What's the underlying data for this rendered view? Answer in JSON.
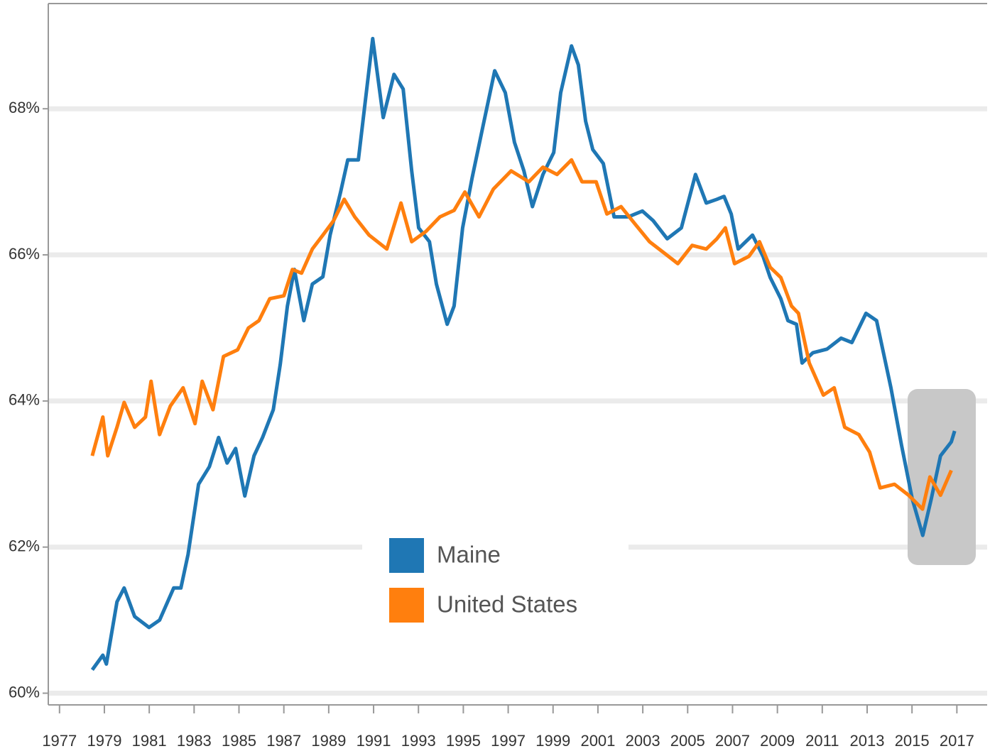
{
  "chart_data": {
    "type": "line",
    "ylim": [
      59.84,
      69.44
    ],
    "yticks": [
      {
        "value": 60,
        "label": "60%"
      },
      {
        "value": 62,
        "label": "62%"
      },
      {
        "value": 64,
        "label": "64%"
      },
      {
        "value": 66,
        "label": "66%"
      },
      {
        "value": 68,
        "label": "68%"
      }
    ],
    "xlim": [
      1976.5,
      2018.35
    ],
    "xticks": [
      1977,
      1979,
      1981,
      1983,
      1985,
      1987,
      1989,
      1991,
      1993,
      1995,
      1997,
      1999,
      2001,
      2003,
      2005,
      2007,
      2009,
      2011,
      2013,
      2015,
      2017
    ],
    "grid": true,
    "series": [
      {
        "name": "Maine",
        "color": "#1f77b4",
        "x": [
          1978.46,
          1978.93,
          1979.09,
          1979.56,
          1979.88,
          1980.35,
          1980.99,
          1981.46,
          1982.09,
          1982.41,
          1982.73,
          1983.2,
          1983.68,
          1984.09,
          1984.47,
          1984.85,
          1985.26,
          1985.67,
          1986.05,
          1986.53,
          1986.84,
          1987.16,
          1987.47,
          1987.89,
          1988.27,
          1988.74,
          1989.06,
          1989.53,
          1989.85,
          1990.32,
          1990.64,
          1990.96,
          1991.43,
          1991.91,
          1992.32,
          1992.7,
          1993.01,
          1993.49,
          1993.8,
          1994.28,
          1994.59,
          1994.97,
          1995.39,
          1995.86,
          1996.4,
          1996.87,
          1997.28,
          1997.7,
          1998.08,
          1998.55,
          1999.03,
          1999.34,
          1999.82,
          2000.13,
          2000.45,
          2000.77,
          2001.24,
          2001.72,
          2002.35,
          2002.98,
          2003.46,
          2004.09,
          2004.72,
          2005.35,
          2005.83,
          2006.3,
          2006.62,
          2006.94,
          2007.25,
          2007.89,
          2008.36,
          2008.68,
          2009.15,
          2009.47,
          2009.85,
          2010.1,
          2010.58,
          2011.21,
          2011.84,
          2012.32,
          2012.95,
          2013.42,
          2014.06,
          2014.53,
          2015.01,
          2015.48,
          2015.86,
          2016.27,
          2016.75,
          2016.9
        ],
        "values": [
          60.32,
          60.52,
          60.4,
          61.25,
          61.44,
          61.05,
          60.9,
          61.0,
          61.44,
          61.44,
          61.9,
          62.86,
          63.1,
          63.5,
          63.15,
          63.35,
          62.7,
          63.25,
          63.5,
          63.88,
          64.5,
          65.3,
          65.8,
          65.1,
          65.6,
          65.7,
          66.27,
          66.86,
          67.3,
          67.3,
          68.13,
          68.96,
          67.88,
          68.47,
          68.27,
          67.15,
          66.37,
          66.18,
          65.6,
          65.05,
          65.3,
          66.37,
          67.05,
          67.74,
          68.52,
          68.22,
          67.54,
          67.15,
          66.66,
          67.1,
          67.4,
          68.22,
          68.86,
          68.6,
          67.83,
          67.44,
          67.25,
          66.52,
          66.52,
          66.6,
          66.47,
          66.22,
          66.37,
          67.1,
          66.71,
          66.76,
          66.8,
          66.56,
          66.08,
          66.27,
          65.98,
          65.69,
          65.4,
          65.1,
          65.05,
          64.52,
          64.66,
          64.71,
          64.86,
          64.8,
          65.2,
          65.1,
          64.18,
          63.4,
          62.66,
          62.16,
          62.66,
          63.25,
          63.44,
          63.59
        ]
      },
      {
        "name": "United States",
        "color": "#ff7f0e",
        "x": [
          1978.46,
          1978.93,
          1979.15,
          1979.56,
          1979.88,
          1980.35,
          1980.83,
          1981.08,
          1981.46,
          1981.94,
          1982.51,
          1983.04,
          1983.36,
          1983.84,
          1984.31,
          1984.94,
          1985.42,
          1985.89,
          1986.37,
          1987.0,
          1987.38,
          1987.79,
          1988.27,
          1988.74,
          1989.22,
          1989.69,
          1990.16,
          1990.8,
          1991.59,
          1992.22,
          1992.7,
          1993.33,
          1993.96,
          1994.59,
          1995.07,
          1995.7,
          1996.34,
          1997.13,
          1997.92,
          1998.55,
          1999.18,
          1999.82,
          2000.29,
          2000.92,
          2001.4,
          2002.03,
          2002.66,
          2003.3,
          2003.93,
          2004.56,
          2005.2,
          2005.83,
          2006.3,
          2006.68,
          2007.09,
          2007.73,
          2008.2,
          2008.68,
          2009.15,
          2009.63,
          2009.94,
          2010.42,
          2011.05,
          2011.53,
          2012.0,
          2012.63,
          2013.11,
          2013.58,
          2014.22,
          2014.85,
          2015.47,
          2015.8,
          2016.27,
          2016.75
        ],
        "values": [
          63.25,
          63.78,
          63.25,
          63.64,
          63.98,
          63.64,
          63.78,
          64.27,
          63.54,
          63.93,
          64.18,
          63.69,
          64.27,
          63.88,
          64.61,
          64.7,
          65.0,
          65.1,
          65.4,
          65.44,
          65.8,
          65.75,
          66.08,
          66.27,
          66.47,
          66.76,
          66.52,
          66.27,
          66.08,
          66.71,
          66.18,
          66.32,
          66.52,
          66.61,
          66.86,
          66.52,
          66.9,
          67.15,
          67.0,
          67.2,
          67.1,
          67.3,
          67.0,
          67.0,
          66.56,
          66.66,
          66.42,
          66.18,
          66.03,
          65.88,
          66.13,
          66.08,
          66.22,
          66.37,
          65.88,
          65.98,
          66.18,
          65.83,
          65.69,
          65.3,
          65.2,
          64.52,
          64.08,
          64.18,
          63.64,
          63.54,
          63.3,
          62.81,
          62.86,
          62.71,
          62.52,
          62.96,
          62.71,
          63.05
        ]
      }
    ]
  }
}
